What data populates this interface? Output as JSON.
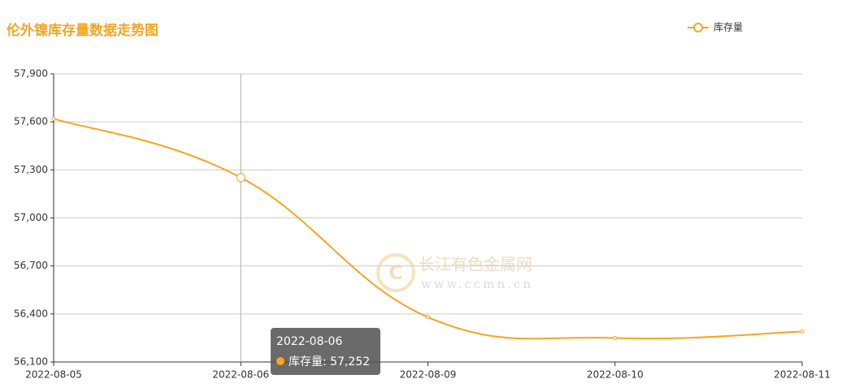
{
  "chart_data": {
    "type": "line",
    "title": "伦外镍库存量数据走势图",
    "categories": [
      "2022-08-05",
      "2022-08-06",
      "2022-08-09",
      "2022-08-10",
      "2022-08-11"
    ],
    "series": [
      {
        "name": "库存量",
        "color": "#f5a623",
        "values": [
          57620,
          57252,
          56380,
          56250,
          56290
        ]
      }
    ],
    "ylim": [
      56100,
      57900
    ],
    "yticks": [
      {
        "value": 56100,
        "label": "56,100"
      },
      {
        "value": 56400,
        "label": "56,400"
      },
      {
        "value": 56700,
        "label": "56,700"
      },
      {
        "value": 57000,
        "label": "57,000"
      },
      {
        "value": 57300,
        "label": "57,300"
      },
      {
        "value": 57600,
        "label": "57,600"
      },
      {
        "value": 57900,
        "label": "57,900"
      }
    ],
    "grid": true,
    "legend": "top-right",
    "tooltip": {
      "title": "2022-08-06",
      "text": "库存量: 57,252"
    },
    "watermark": [
      "长江有色金属网",
      "www.ccmn.cn"
    ]
  }
}
